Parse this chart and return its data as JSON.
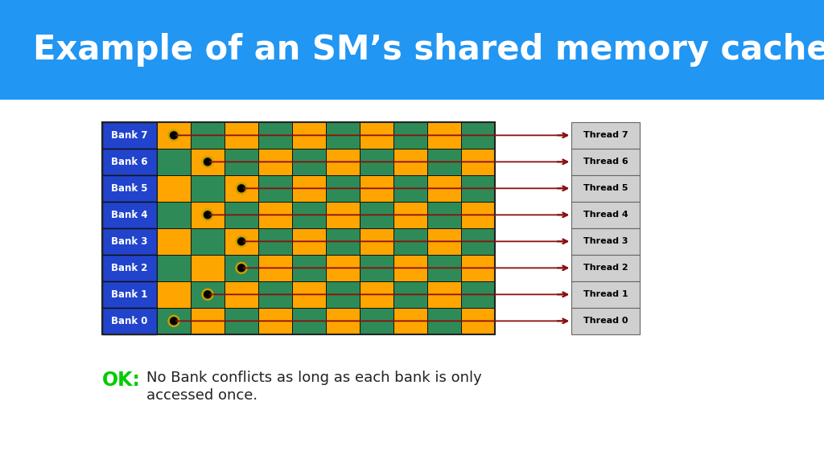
{
  "title": "Example of an SM’s shared memory cache",
  "title_bg": "#2196F3",
  "title_color": "#ffffff",
  "title_fontsize": 30,
  "bg_color": "#ffffff",
  "num_banks": 8,
  "num_cols": 10,
  "bank_labels": [
    "Bank 7",
    "Bank 6",
    "Bank 5",
    "Bank 4",
    "Bank 3",
    "Bank 2",
    "Bank 1",
    "Bank 0"
  ],
  "thread_labels": [
    "Thread 7",
    "Thread 6",
    "Thread 5",
    "Thread 4",
    "Thread 3",
    "Thread 2",
    "Thread 1",
    "Thread 0"
  ],
  "cell_color_orange": "#FFA500",
  "cell_color_green": "#2E8B57",
  "bank_label_bg": "#2244CC",
  "bank_label_color": "#ffffff",
  "dot_col": [
    0,
    1,
    2,
    1,
    2,
    2,
    1,
    0
  ],
  "arrow_color": "#8B1010",
  "arrow_connections": [
    7,
    6,
    5,
    4,
    3,
    2,
    1,
    0
  ],
  "ok_color": "#00cc00",
  "ok_text": "OK:",
  "desc_line1": "No Bank conflicts as long as each bank is only",
  "desc_line2": "accessed once.",
  "desc_fontsize": 13,
  "ok_fontsize": 17,
  "thread_box_color": "#d0d0d0",
  "thread_box_edge": "#666666"
}
